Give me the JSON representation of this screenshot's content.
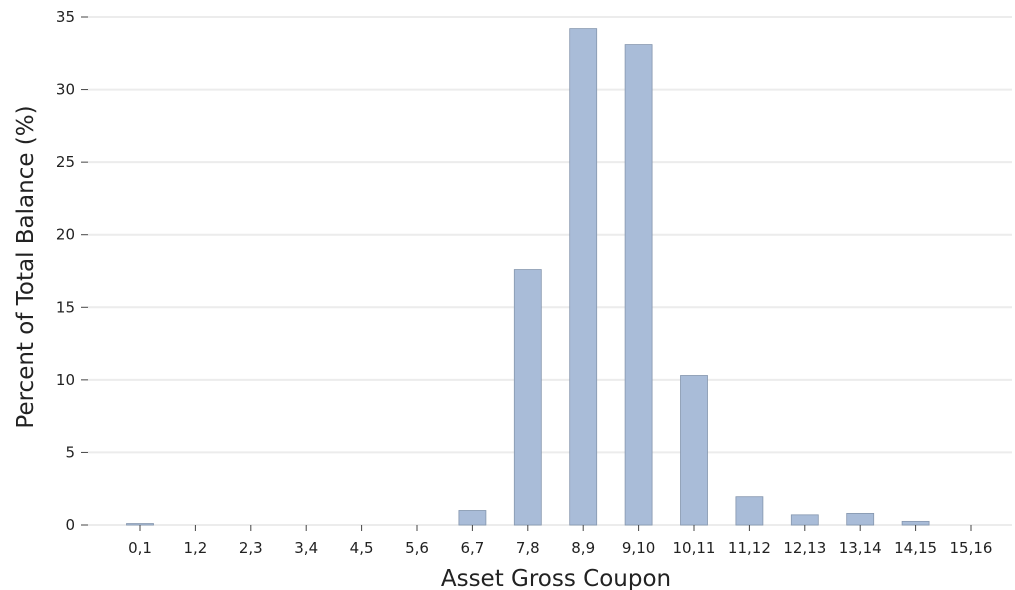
{
  "chart_data": {
    "type": "bar",
    "title": "",
    "xlabel": "Asset Gross Coupon",
    "ylabel": "Percent of Total Balance (%)",
    "categories": [
      "0,1",
      "1,2",
      "2,3",
      "3,4",
      "4,5",
      "5,6",
      "6,7",
      "7,8",
      "8,9",
      "9,10",
      "10,11",
      "11,12",
      "12,13",
      "13,14",
      "14,15",
      "15,16"
    ],
    "values": [
      0.1,
      0,
      0,
      0,
      0,
      0,
      1.0,
      17.6,
      34.2,
      33.1,
      10.3,
      1.95,
      0.7,
      0.8,
      0.25,
      0
    ],
    "ylim": [
      0,
      35
    ],
    "yticks": [
      0,
      5,
      10,
      15,
      20,
      25,
      30,
      35
    ],
    "grid": "horizontal",
    "legend": "none",
    "bar_color": "#a9bcd8",
    "bar_edge_color": "#8596ae"
  }
}
